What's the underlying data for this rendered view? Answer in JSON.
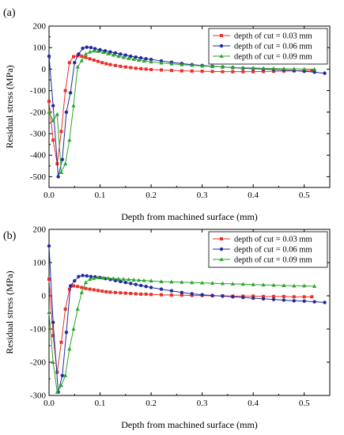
{
  "chart_data": [
    {
      "type": "line",
      "panel_label": "(a)",
      "xlabel": "Depth from machined surface (mm)",
      "ylabel": "Residual stress (MPa)",
      "xlim": [
        0,
        0.55
      ],
      "ylim": [
        -550,
        200
      ],
      "xticks": [
        0.0,
        0.1,
        0.2,
        0.3,
        0.4,
        0.5
      ],
      "xtick_labels": [
        "0.0",
        "0.1",
        "0.2",
        "0.3",
        "0.4",
        "0.5"
      ],
      "yticks": [
        -500,
        -400,
        -300,
        -200,
        -100,
        0,
        100,
        200
      ],
      "ytick_labels": [
        "-500",
        "-400",
        "-300",
        "-200",
        "-100",
        "0",
        "100",
        "200"
      ],
      "legend_position": "top-right",
      "series": [
        {
          "name": "depth of cut = 0.03 mm",
          "color": "#e8302a",
          "marker": "square",
          "x": [
            0.0,
            0.008,
            0.016,
            0.024,
            0.032,
            0.04,
            0.048,
            0.056,
            0.064,
            0.072,
            0.08,
            0.088,
            0.096,
            0.104,
            0.112,
            0.12,
            0.13,
            0.14,
            0.15,
            0.16,
            0.17,
            0.18,
            0.19,
            0.2,
            0.22,
            0.24,
            0.26,
            0.28,
            0.3,
            0.32,
            0.34,
            0.36,
            0.38,
            0.4,
            0.42,
            0.44,
            0.46,
            0.48,
            0.5,
            0.515
          ],
          "y": [
            -150,
            -330,
            -440,
            -290,
            -100,
            30,
            58,
            62,
            60,
            54,
            48,
            42,
            36,
            30,
            25,
            21,
            17,
            13,
            10,
            7,
            4,
            2,
            0,
            -2,
            -4,
            -6,
            -8,
            -9,
            -10,
            -11,
            -12,
            -12,
            -12,
            -12,
            -11,
            -10,
            -9,
            -8,
            -7,
            -6
          ]
        },
        {
          "name": "depth of cut = 0.06 mm",
          "color": "#1f2aa0",
          "marker": "circle",
          "x": [
            0.0,
            0.008,
            0.018,
            0.026,
            0.034,
            0.042,
            0.05,
            0.058,
            0.066,
            0.074,
            0.082,
            0.09,
            0.1,
            0.11,
            0.12,
            0.13,
            0.14,
            0.15,
            0.16,
            0.17,
            0.18,
            0.19,
            0.2,
            0.22,
            0.24,
            0.26,
            0.28,
            0.3,
            0.32,
            0.34,
            0.36,
            0.38,
            0.4,
            0.42,
            0.44,
            0.46,
            0.48,
            0.5,
            0.52,
            0.54
          ],
          "y": [
            60,
            -170,
            -500,
            -420,
            -200,
            -110,
            30,
            70,
            97,
            102,
            100,
            95,
            90,
            85,
            80,
            75,
            70,
            65,
            60,
            56,
            52,
            48,
            45,
            38,
            32,
            26,
            21,
            17,
            13,
            10,
            7,
            4,
            2,
            0,
            -2,
            -4,
            -7,
            -10,
            -14,
            -19
          ]
        },
        {
          "name": "depth of cut = 0.09 mm",
          "color": "#2aa52a",
          "marker": "triangle",
          "x": [
            0.0,
            0.008,
            0.016,
            0.024,
            0.032,
            0.04,
            0.048,
            0.056,
            0.064,
            0.072,
            0.08,
            0.088,
            0.096,
            0.106,
            0.116,
            0.126,
            0.136,
            0.146,
            0.156,
            0.166,
            0.176,
            0.186,
            0.2,
            0.22,
            0.24,
            0.26,
            0.28,
            0.3,
            0.32,
            0.34,
            0.36,
            0.38,
            0.4,
            0.42,
            0.44,
            0.46,
            0.48,
            0.5,
            0.52
          ],
          "y": [
            -200,
            -240,
            -210,
            -480,
            -440,
            -330,
            -170,
            10,
            40,
            70,
            80,
            85,
            83,
            78,
            72,
            66,
            60,
            55,
            50,
            46,
            42,
            38,
            34,
            29,
            25,
            21,
            18,
            15,
            12,
            10,
            8,
            6,
            5,
            4,
            3,
            2,
            1,
            0,
            -1
          ]
        }
      ]
    },
    {
      "type": "line",
      "panel_label": "(b)",
      "xlabel": "Depth from machined surface (mm)",
      "ylabel": "Residual stress (MPa)",
      "xlim": [
        0,
        0.55
      ],
      "ylim": [
        -300,
        200
      ],
      "xticks": [
        0.0,
        0.1,
        0.2,
        0.3,
        0.4,
        0.5
      ],
      "xtick_labels": [
        "0.0",
        "0.1",
        "0.2",
        "0.3",
        "0.4",
        "0.5"
      ],
      "yticks": [
        -300,
        -200,
        -100,
        0,
        100,
        200
      ],
      "ytick_labels": [
        "-300",
        "-200",
        "-100",
        "0",
        "100",
        "200"
      ],
      "legend_position": "top-right",
      "series": [
        {
          "name": "depth of cut = 0.03 mm",
          "color": "#e8302a",
          "marker": "square",
          "x": [
            0.0,
            0.008,
            0.016,
            0.024,
            0.032,
            0.04,
            0.048,
            0.056,
            0.064,
            0.072,
            0.08,
            0.088,
            0.096,
            0.104,
            0.112,
            0.12,
            0.13,
            0.14,
            0.15,
            0.16,
            0.17,
            0.18,
            0.19,
            0.2,
            0.22,
            0.24,
            0.26,
            0.28,
            0.3,
            0.32,
            0.34,
            0.36,
            0.38,
            0.4,
            0.42,
            0.44,
            0.46,
            0.48,
            0.5,
            0.515
          ],
          "y": [
            50,
            -120,
            -230,
            -140,
            -40,
            20,
            30,
            28,
            25,
            22,
            20,
            18,
            16,
            14,
            12,
            11,
            10,
            9,
            8,
            7,
            6,
            5,
            5,
            4,
            3,
            2,
            2,
            1,
            1,
            0,
            0,
            -1,
            -1,
            -1,
            -2,
            -2,
            -2,
            -3,
            -3,
            -3
          ]
        },
        {
          "name": "depth of cut = 0.06 mm",
          "color": "#1f2aa0",
          "marker": "circle",
          "x": [
            0.0,
            0.008,
            0.018,
            0.026,
            0.034,
            0.042,
            0.05,
            0.058,
            0.066,
            0.074,
            0.082,
            0.09,
            0.1,
            0.11,
            0.12,
            0.13,
            0.14,
            0.15,
            0.16,
            0.17,
            0.18,
            0.19,
            0.2,
            0.22,
            0.24,
            0.26,
            0.28,
            0.3,
            0.32,
            0.34,
            0.36,
            0.38,
            0.4,
            0.42,
            0.44,
            0.46,
            0.48,
            0.5,
            0.52,
            0.54
          ],
          "y": [
            150,
            -80,
            -290,
            -240,
            -110,
            30,
            45,
            58,
            61,
            60,
            58,
            57,
            55,
            52,
            49,
            46,
            43,
            40,
            37,
            34,
            31,
            28,
            25,
            20,
            15,
            10,
            6,
            3,
            1,
            -1,
            -3,
            -5,
            -7,
            -9,
            -11,
            -13,
            -15,
            -16,
            -18,
            -20
          ]
        },
        {
          "name": "depth of cut = 0.09 mm",
          "color": "#2aa52a",
          "marker": "triangle",
          "x": [
            0.0,
            0.008,
            0.016,
            0.024,
            0.032,
            0.04,
            0.048,
            0.056,
            0.064,
            0.072,
            0.08,
            0.088,
            0.096,
            0.106,
            0.116,
            0.126,
            0.136,
            0.146,
            0.156,
            0.166,
            0.176,
            0.186,
            0.2,
            0.22,
            0.24,
            0.26,
            0.28,
            0.3,
            0.32,
            0.34,
            0.36,
            0.38,
            0.4,
            0.42,
            0.44,
            0.46,
            0.48,
            0.5,
            0.52
          ],
          "y": [
            -50,
            -200,
            -290,
            -270,
            -240,
            -160,
            -100,
            -40,
            10,
            40,
            50,
            53,
            55,
            54,
            53,
            52,
            51,
            50,
            49,
            48,
            47,
            46,
            45,
            43,
            42,
            41,
            40,
            39,
            38,
            37,
            36,
            35,
            34,
            33,
            32,
            31,
            30,
            30,
            29
          ]
        }
      ]
    }
  ]
}
